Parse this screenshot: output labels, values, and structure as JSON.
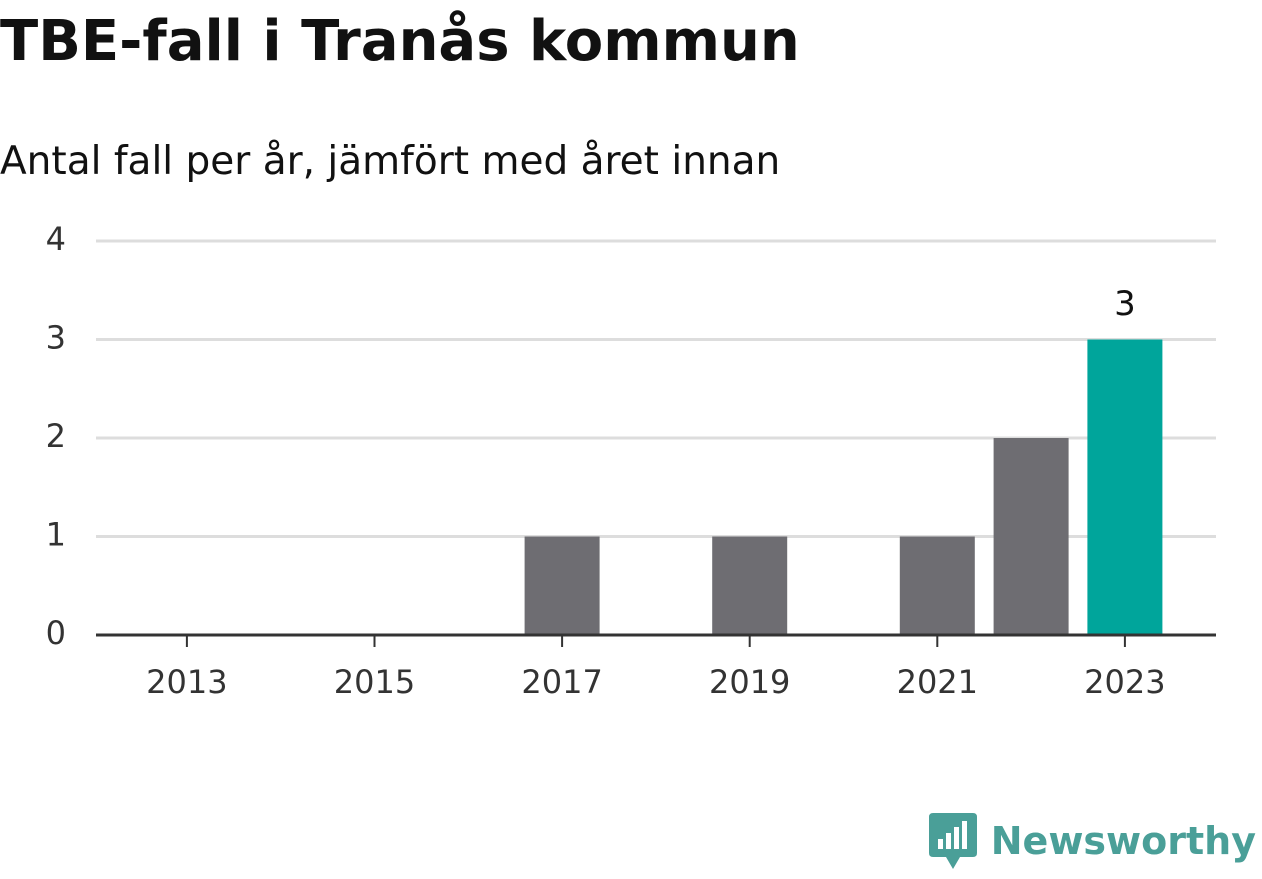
{
  "title": "TBE-fall i Tranås kommun",
  "subtitle": "Antal fall per år, jämfört med året innan",
  "brand": {
    "name": "Newsworthy",
    "icon": "newsworthy-logo-icon",
    "color": "#4a9f98"
  },
  "colors": {
    "bar": "#6e6d72",
    "highlight": "#00a59b",
    "grid": "#dddddd",
    "axis": "#333333",
    "tick_text": "#333333"
  },
  "chart_data": {
    "type": "bar",
    "categories": [
      "2013",
      "2014",
      "2015",
      "2016",
      "2017",
      "2018",
      "2019",
      "2020",
      "2021",
      "2022",
      "2023"
    ],
    "values": [
      0,
      0,
      0,
      0,
      1,
      0,
      1,
      0,
      1,
      2,
      3
    ],
    "x_tick_labels": [
      "2013",
      "2015",
      "2017",
      "2019",
      "2021",
      "2023"
    ],
    "y_ticks": [
      0,
      1,
      2,
      3,
      4
    ],
    "ylim": [
      0,
      4
    ],
    "highlight_category": "2023",
    "data_labels": [
      {
        "category": "2023",
        "text": "3"
      }
    ],
    "grid": true,
    "legend": false
  }
}
